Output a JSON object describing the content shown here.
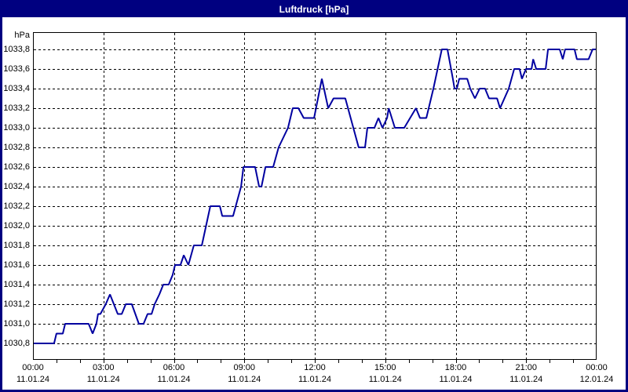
{
  "window": {
    "title": "Luftdruck [hPa]",
    "titlebar_bg": "#000080",
    "border_color": "#000080"
  },
  "chart_data": {
    "type": "line",
    "title": "Luftdruck [hPa]",
    "ylabel": "hPa",
    "xlabel": "",
    "line_color": "#0000A0",
    "grid": "dashed-black",
    "legend": "none",
    "ylim": [
      1030.632,
      1033.976
    ],
    "xlim_hours": [
      0,
      24
    ],
    "yticks": [
      {
        "value": 1033.8,
        "label": "1033,8"
      },
      {
        "value": 1033.6,
        "label": "1033,6"
      },
      {
        "value": 1033.4,
        "label": "1033,4"
      },
      {
        "value": 1033.2,
        "label": "1033,2"
      },
      {
        "value": 1033.0,
        "label": "1033,0"
      },
      {
        "value": 1032.8,
        "label": "1032,8"
      },
      {
        "value": 1032.6,
        "label": "1032,6"
      },
      {
        "value": 1032.4,
        "label": "1032,4"
      },
      {
        "value": 1032.2,
        "label": "1032,2"
      },
      {
        "value": 1032.0,
        "label": "1032,0"
      },
      {
        "value": 1031.8,
        "label": "1031,8"
      },
      {
        "value": 1031.6,
        "label": "1031,6"
      },
      {
        "value": 1031.4,
        "label": "1031,4"
      },
      {
        "value": 1031.2,
        "label": "1031,2"
      },
      {
        "value": 1031.0,
        "label": "1031,0"
      },
      {
        "value": 1030.8,
        "label": "1030,8"
      }
    ],
    "xticks": [
      {
        "hour": 0,
        "time": "00:00",
        "date": "11.01.24"
      },
      {
        "hour": 3,
        "time": "03:00",
        "date": "11.01.24"
      },
      {
        "hour": 6,
        "time": "06:00",
        "date": "11.01.24"
      },
      {
        "hour": 9,
        "time": "09:00",
        "date": "11.01.24"
      },
      {
        "hour": 12,
        "time": "12:00",
        "date": "11.01.24"
      },
      {
        "hour": 15,
        "time": "15:00",
        "date": "11.01.24"
      },
      {
        "hour": 18,
        "time": "18:00",
        "date": "11.01.24"
      },
      {
        "hour": 21,
        "time": "21:00",
        "date": "11.01.24"
      },
      {
        "hour": 24,
        "time": "00:00",
        "date": "12.01.24"
      }
    ],
    "minor_tick_every_hours": 1,
    "series": [
      {
        "name": "Luftdruck",
        "points": [
          [
            0,
            1030.8
          ],
          [
            0.9,
            1030.8
          ],
          [
            1.0,
            1030.9
          ],
          [
            1.27,
            1030.9
          ],
          [
            1.37,
            1031.0
          ],
          [
            2.37,
            1031.0
          ],
          [
            2.54,
            1030.9
          ],
          [
            2.7,
            1031.0
          ],
          [
            2.77,
            1031.1
          ],
          [
            2.87,
            1031.1
          ],
          [
            3.1,
            1031.2
          ],
          [
            3.28,
            1031.3
          ],
          [
            3.61,
            1031.1
          ],
          [
            3.78,
            1031.1
          ],
          [
            3.95,
            1031.2
          ],
          [
            4.21,
            1031.2
          ],
          [
            4.51,
            1031.0
          ],
          [
            4.71,
            1031.0
          ],
          [
            4.88,
            1031.1
          ],
          [
            5.05,
            1031.1
          ],
          [
            5.18,
            1031.2
          ],
          [
            5.38,
            1031.3
          ],
          [
            5.55,
            1031.4
          ],
          [
            5.78,
            1031.4
          ],
          [
            5.95,
            1031.5
          ],
          [
            6.05,
            1031.6
          ],
          [
            6.28,
            1031.6
          ],
          [
            6.42,
            1031.7
          ],
          [
            6.62,
            1031.6
          ],
          [
            6.85,
            1031.8
          ],
          [
            7.19,
            1031.8
          ],
          [
            7.55,
            1032.2
          ],
          [
            7.96,
            1032.2
          ],
          [
            8.06,
            1032.1
          ],
          [
            8.52,
            1032.1
          ],
          [
            8.86,
            1032.4
          ],
          [
            8.96,
            1032.6
          ],
          [
            9.46,
            1032.6
          ],
          [
            9.63,
            1032.4
          ],
          [
            9.73,
            1032.4
          ],
          [
            9.9,
            1032.6
          ],
          [
            10.23,
            1032.6
          ],
          [
            10.46,
            1032.8
          ],
          [
            10.86,
            1033.0
          ],
          [
            11.06,
            1033.2
          ],
          [
            11.3,
            1033.2
          ],
          [
            11.53,
            1033.1
          ],
          [
            11.97,
            1033.1
          ],
          [
            12.3,
            1033.5
          ],
          [
            12.57,
            1033.2
          ],
          [
            12.8,
            1033.3
          ],
          [
            13.3,
            1033.3
          ],
          [
            13.87,
            1032.8
          ],
          [
            14.14,
            1032.8
          ],
          [
            14.24,
            1033.0
          ],
          [
            14.54,
            1033.0
          ],
          [
            14.71,
            1033.1
          ],
          [
            14.88,
            1033.0
          ],
          [
            15.08,
            1033.1
          ],
          [
            15.15,
            1033.2
          ],
          [
            15.41,
            1033.0
          ],
          [
            15.81,
            1033.0
          ],
          [
            16.31,
            1033.2
          ],
          [
            16.48,
            1033.1
          ],
          [
            16.75,
            1033.1
          ],
          [
            17.05,
            1033.4
          ],
          [
            17.41,
            1033.8
          ],
          [
            17.65,
            1033.8
          ],
          [
            17.88,
            1033.5
          ],
          [
            17.95,
            1033.4
          ],
          [
            18.05,
            1033.4
          ],
          [
            18.15,
            1033.5
          ],
          [
            18.49,
            1033.5
          ],
          [
            18.62,
            1033.4
          ],
          [
            18.82,
            1033.3
          ],
          [
            19.02,
            1033.4
          ],
          [
            19.25,
            1033.4
          ],
          [
            19.42,
            1033.3
          ],
          [
            19.76,
            1033.3
          ],
          [
            19.89,
            1033.2
          ],
          [
            20.26,
            1033.4
          ],
          [
            20.49,
            1033.6
          ],
          [
            20.72,
            1033.6
          ],
          [
            20.82,
            1033.5
          ],
          [
            20.99,
            1033.6
          ],
          [
            21.23,
            1033.6
          ],
          [
            21.3,
            1033.7
          ],
          [
            21.43,
            1033.6
          ],
          [
            21.83,
            1033.6
          ],
          [
            21.93,
            1033.8
          ],
          [
            22.43,
            1033.8
          ],
          [
            22.56,
            1033.7
          ],
          [
            22.66,
            1033.8
          ],
          [
            23.06,
            1033.8
          ],
          [
            23.16,
            1033.7
          ],
          [
            23.66,
            1033.7
          ],
          [
            23.83,
            1033.8
          ],
          [
            24,
            1033.8
          ]
        ]
      }
    ]
  }
}
